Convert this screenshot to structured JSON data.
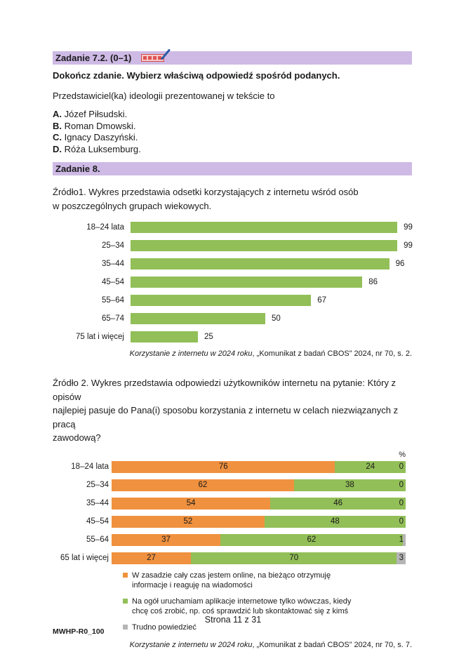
{
  "task72": {
    "header": "Zadanie 7.2. (0–1)",
    "instruction": "Dokończ zdanie. Wybierz właściwą odpowiedź spośród podanych.",
    "stem": "Przedstawiciel(ka) ideologii prezentowanej w tekście to",
    "options": [
      {
        "letter": "A.",
        "text": "Józef Piłsudski."
      },
      {
        "letter": "B.",
        "text": "Roman Dmowski."
      },
      {
        "letter": "C.",
        "text": "Ignacy Daszyński."
      },
      {
        "letter": "D.",
        "text": "Róża Luksemburg."
      }
    ]
  },
  "task8": {
    "header": "Zadanie 8.",
    "source1_lines": [
      "Źródło1. Wykres przedstawia odsetki korzystających z internetu wśród osób",
      "w poszczególnych grupach wiekowych."
    ],
    "source2_lines": [
      "Źródło 2. Wykres przedstawia odpowiedzi użytkowników internetu na pytanie: Który z opisów",
      "najlepiej pasuje do Pana(i) sposobu korzystania z internetu w celach niezwiązanych z pracą",
      "zawodową?"
    ],
    "citation1": {
      "italic": "Korzystanie z internetu w 2024 roku",
      "rest": ", „Komunikat z badań CBOS” 2024, nr 70, s. 2."
    },
    "citation2": {
      "italic": "Korzystanie z internetu w 2024 roku",
      "rest": ", „Komunikat z badań CBOS” 2024, nr 70, s. 7."
    }
  },
  "chart_data": [
    {
      "type": "bar",
      "orientation": "horizontal",
      "title": "",
      "categories": [
        "18–24 lata",
        "25–34",
        "35–44",
        "45–54",
        "55–64",
        "65–74",
        "75 lat i więcej"
      ],
      "values": [
        99,
        99,
        96,
        86,
        67,
        50,
        25
      ],
      "xlim": [
        0,
        100
      ],
      "bar_color": "#92bf58",
      "value_labels": true,
      "grid": false,
      "legend": false
    },
    {
      "type": "bar",
      "subtype": "stacked",
      "orientation": "horizontal",
      "unit_label": "%",
      "categories": [
        "18–24 lata",
        "25–34",
        "35–44",
        "45–54",
        "55–64",
        "65 lat i więcej"
      ],
      "series": [
        {
          "name": "W zasadzie cały czas jestem online, na bieżąco otrzymuję informacje i reaguję na wiadomości",
          "color": "#f0913f",
          "values": [
            76,
            62,
            54,
            52,
            37,
            27
          ]
        },
        {
          "name": "Na ogół uruchamiam aplikacje internetowe tylko wówczas, kiedy chcę coś zrobić, np. coś sprawdzić lub skontaktować się z kimś",
          "color": "#92bf58",
          "values": [
            24,
            38,
            46,
            48,
            62,
            70
          ]
        },
        {
          "name": "Trudno powiedzieć",
          "color": "#b5b5b5",
          "values": [
            0,
            0,
            0,
            0,
            1,
            3
          ]
        }
      ],
      "xlim": [
        0,
        100
      ],
      "grid": false,
      "legend_position": "bottom"
    }
  ],
  "footer": {
    "page_label": "Strona 11 z 31",
    "doc_code": "MWHP-R0_100"
  },
  "colors": {
    "band": "#cebae5",
    "orange": "#f0913f",
    "green": "#92bf58",
    "gray": "#b5b5b5"
  }
}
